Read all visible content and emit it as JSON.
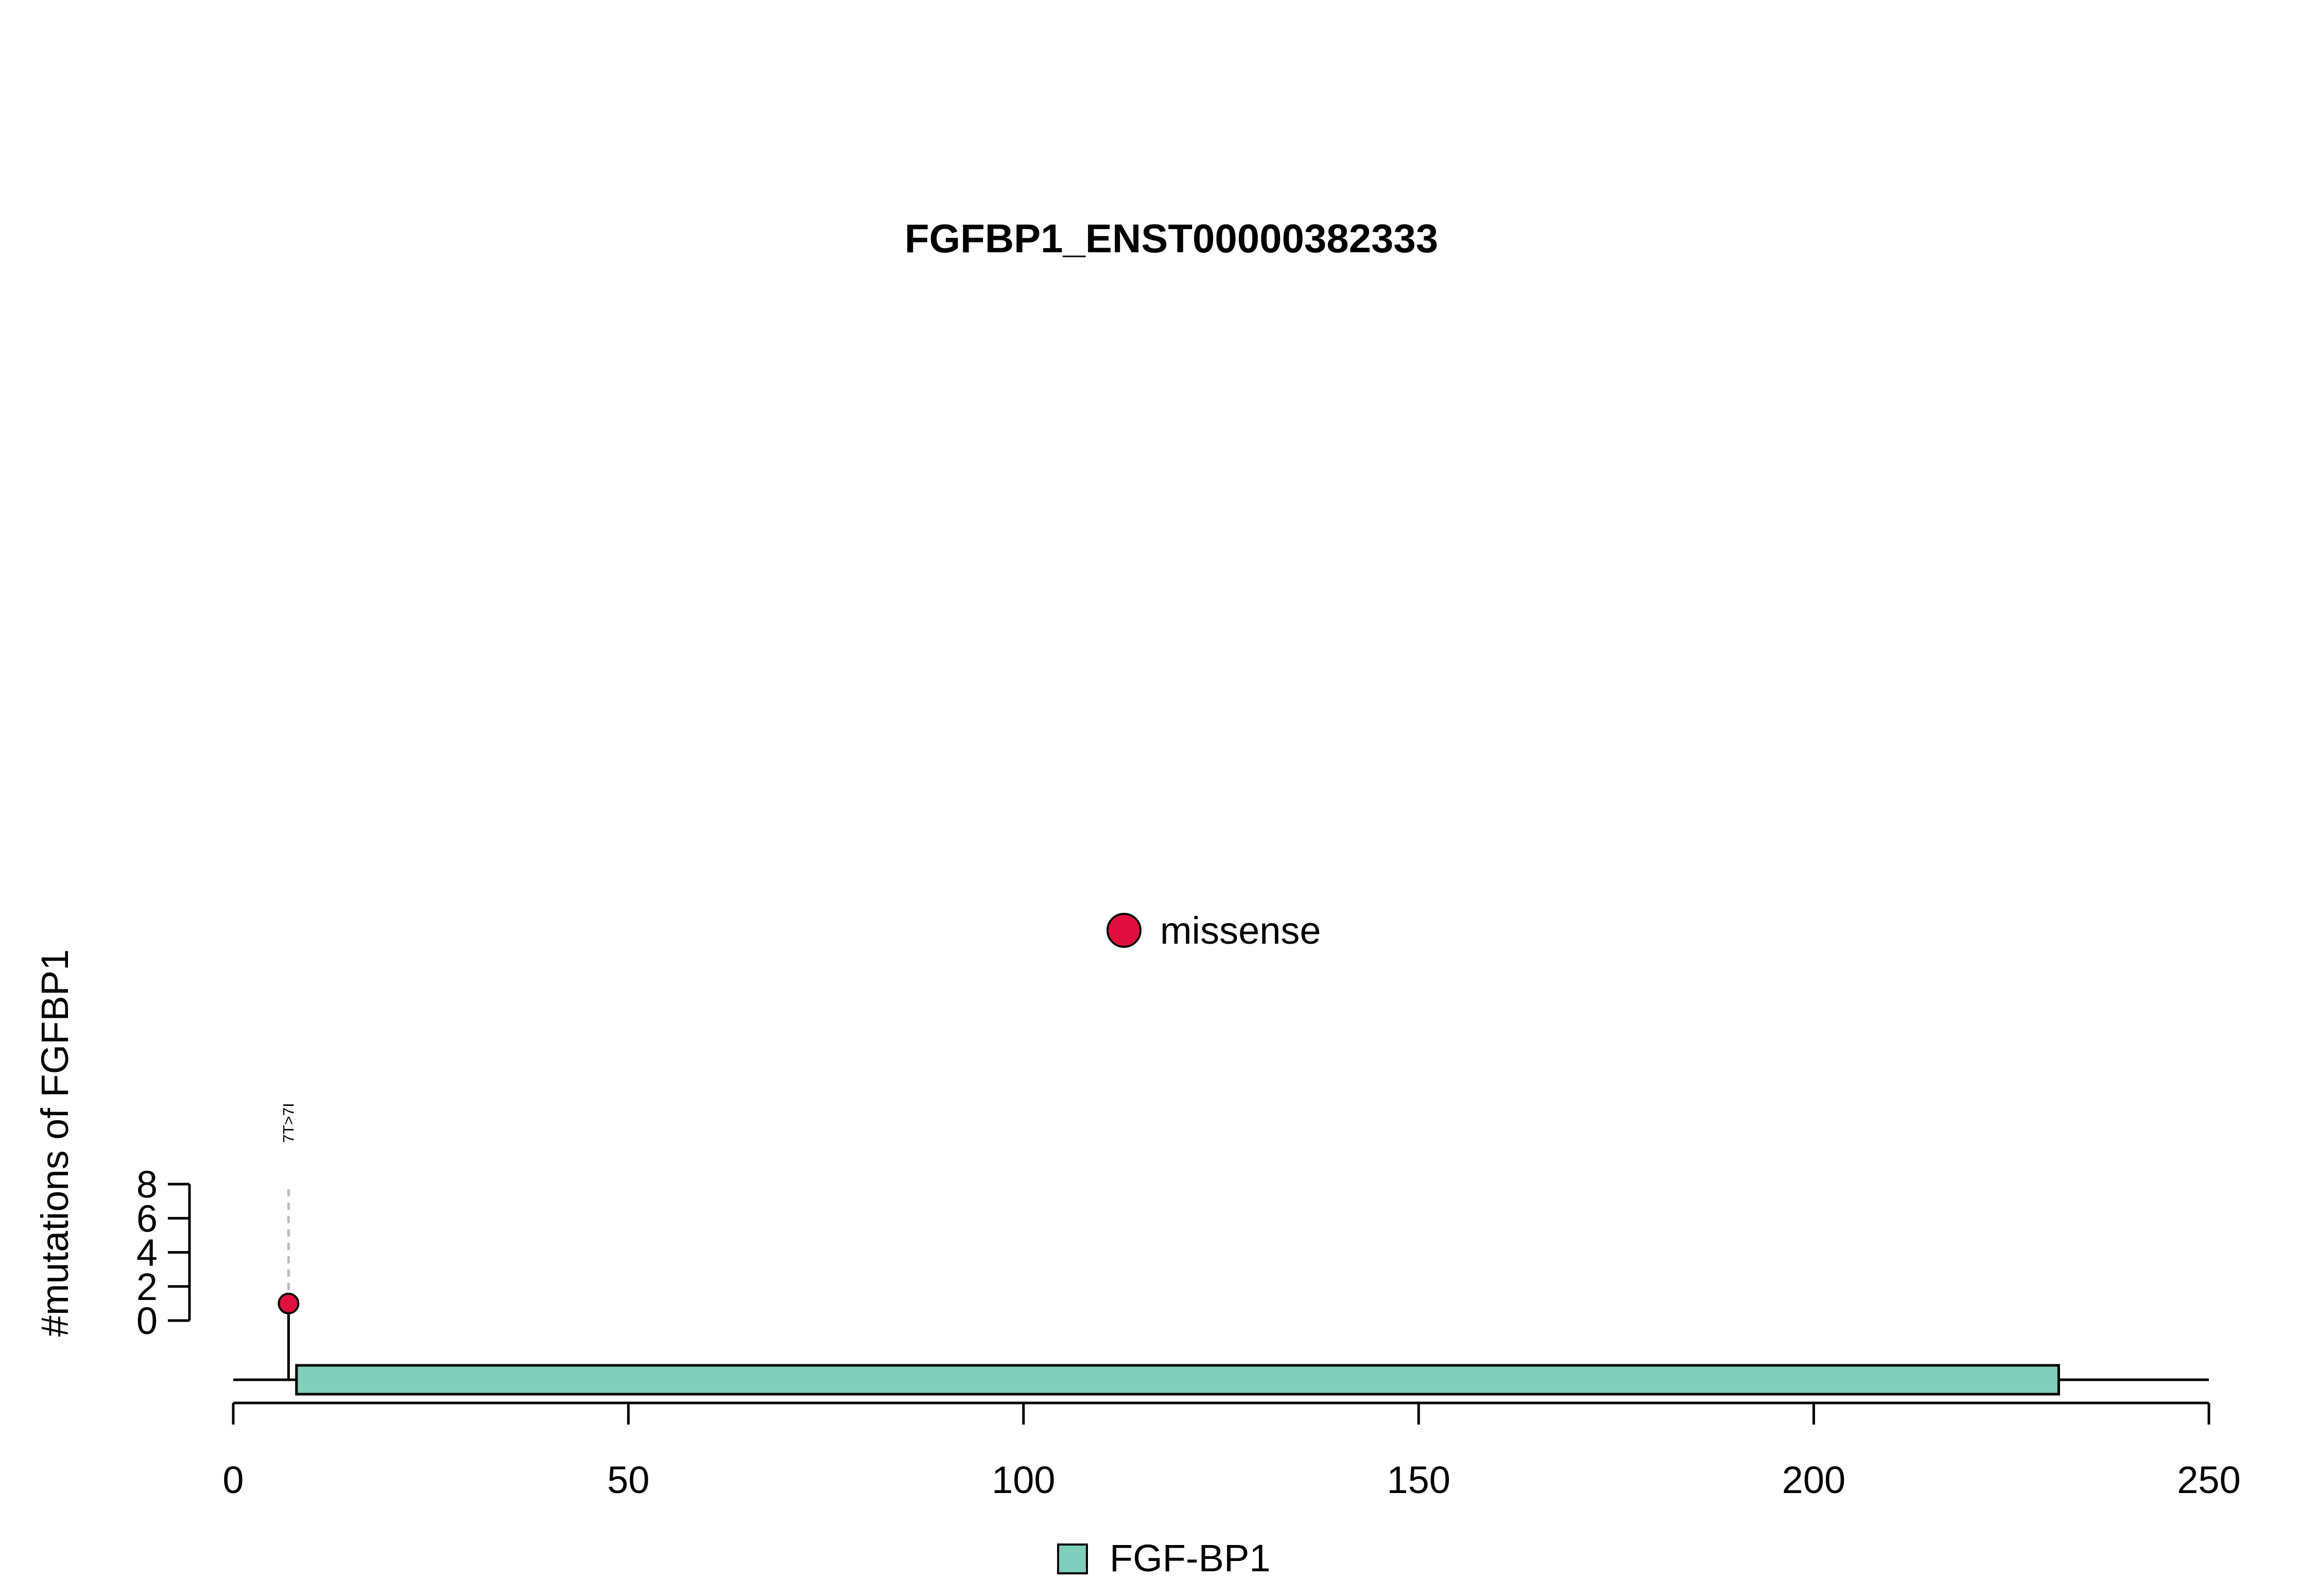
{
  "chart_data": {
    "type": "lollipop",
    "title": "FGFBP1_ENST00000382333",
    "ylabel": "#mutations of FGFBP1",
    "xlabel": "",
    "xlim": [
      0,
      250
    ],
    "ylim": [
      0,
      8
    ],
    "x_ticks": [
      0,
      50,
      100,
      150,
      200,
      250
    ],
    "y_ticks": [
      0,
      2,
      4,
      6,
      8
    ],
    "protein_length": 250,
    "mutations": [
      {
        "position": 7,
        "count": 1,
        "label": "7T>7I",
        "type": "missense"
      }
    ],
    "domains": [
      {
        "name": "FGF-BP1",
        "start": 8,
        "end": 231,
        "color": "#7fcdbb"
      }
    ],
    "mutation_legend": [
      {
        "label": "missense",
        "color": "#e0103e"
      }
    ],
    "domain_legend": [
      {
        "label": "FGF-BP1",
        "color": "#7fcdbb"
      }
    ],
    "grid": false
  }
}
